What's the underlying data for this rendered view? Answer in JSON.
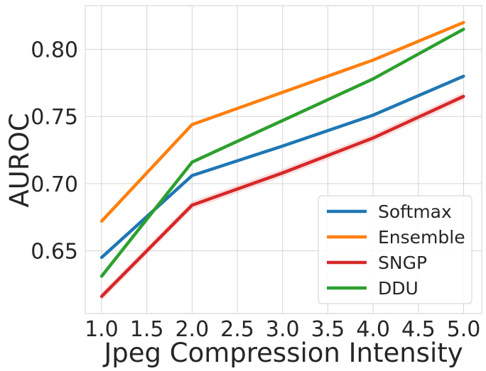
{
  "chart_data": {
    "type": "line",
    "title": "",
    "xlabel": "Jpeg Compression Intensity",
    "ylabel": "AUROC",
    "x": [
      1,
      2,
      3,
      4,
      5
    ],
    "xlim": [
      0.82,
      5.2
    ],
    "ylim": [
      0.6033,
      0.8325
    ],
    "x_ticks": [
      1.0,
      1.5,
      2.0,
      2.5,
      3.0,
      3.5,
      4.0,
      4.5,
      5.0
    ],
    "x_tick_labels": [
      "1.0",
      "1.5",
      "2.0",
      "2.5",
      "3.0",
      "3.5",
      "4.0",
      "4.5",
      "5.0"
    ],
    "y_ticks": [
      0.65,
      0.7,
      0.75,
      0.8
    ],
    "y_tick_labels": [
      "0.65",
      "0.70",
      "0.75",
      "0.80"
    ],
    "grid": true,
    "legend_position": "bottom-right",
    "series": [
      {
        "name": "Softmax",
        "color": "#1f77b4",
        "values": [
          0.645,
          0.706,
          0.728,
          0.751,
          0.78
        ],
        "band": 0.0
      },
      {
        "name": "Ensemble",
        "color": "#ff7f0e",
        "values": [
          0.672,
          0.744,
          0.768,
          0.792,
          0.82
        ],
        "band": 0.0
      },
      {
        "name": "SNGP",
        "color": "#d62728",
        "values": [
          0.616,
          0.684,
          0.708,
          0.734,
          0.765
        ],
        "band": 0.003
      },
      {
        "name": "DDU",
        "color": "#2ca02c",
        "values": [
          0.631,
          0.716,
          0.747,
          0.778,
          0.815
        ],
        "band": 0.001
      }
    ]
  }
}
